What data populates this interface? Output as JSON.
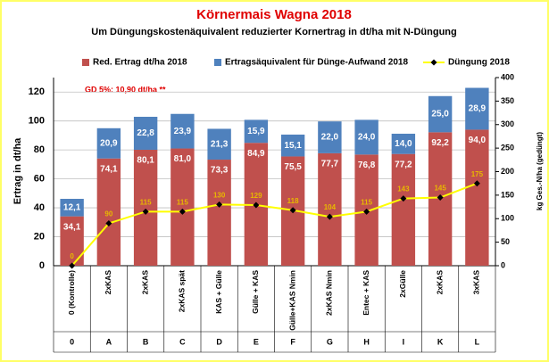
{
  "chart_data": {
    "type": "stacked_bar_line",
    "title": "Körnermais Wagna 2018",
    "subtitle": "Um Düngungskostenäquivalent reduzierter Kornertrag in dt/ha mit  N-Düngung",
    "annotation": "GD 5%:  10,90 dt/ha **",
    "y_label": "Ertrag in dt/ha",
    "y2_label": "kg Ges.-N/ha (gedüngt)",
    "categories": [
      "0 (Kontrolle)",
      "2xKAS",
      "2xKAS",
      "2xKAS spät",
      "KAS + Gülle",
      "Gülle + KAS",
      "Gülle+KAS Nmin",
      "2xKAS Nmin",
      "Entec + KAS",
      "2xGülle",
      "2xKAS",
      "3xKAS"
    ],
    "codes": [
      "0",
      "A",
      "B",
      "C",
      "D",
      "E",
      "F",
      "G",
      "H",
      "I",
      "K",
      "L"
    ],
    "series": [
      {
        "name": "Red. Ertrag dt/ha 2018",
        "color": "#c0504d",
        "kind": "bar",
        "values": [
          34.1,
          74.1,
          80.1,
          81.0,
          73.3,
          84.9,
          75.5,
          77.7,
          76.8,
          77.2,
          92.2,
          94.0
        ],
        "value_labels": [
          "34,1",
          "74,1",
          "80,1",
          "81,0",
          "73,3",
          "84,9",
          "75,5",
          "77,7",
          "76,8",
          "77,2",
          "92,2",
          "94,0"
        ]
      },
      {
        "name": "Ertragsäquivalent für Dünge-Aufwand 2018",
        "color": "#4f81bd",
        "kind": "bar",
        "values": [
          12.1,
          20.9,
          22.8,
          23.9,
          21.3,
          15.9,
          15.1,
          22.0,
          24.0,
          14.0,
          25.0,
          28.9
        ],
        "value_labels": [
          "12,1",
          "20,9",
          "22,8",
          "23,9",
          "21,3",
          "15,9",
          "15,1",
          "22,0",
          "24,0",
          "14,0",
          "25,0",
          "28,9"
        ]
      },
      {
        "name": "Düngung  2018",
        "color": "#ffff00",
        "kind": "line",
        "axis": "y2",
        "values": [
          0,
          90,
          115,
          115,
          130,
          129,
          118,
          104,
          115,
          143,
          145,
          175
        ]
      }
    ],
    "ylim": [
      0,
      130
    ],
    "yticks": [
      0,
      20,
      40,
      60,
      80,
      100,
      120
    ],
    "y2lim": [
      0,
      400
    ],
    "y2ticks": [
      0,
      50,
      100,
      150,
      200,
      250,
      300,
      350,
      400
    ],
    "grid": true,
    "legend": "top"
  }
}
